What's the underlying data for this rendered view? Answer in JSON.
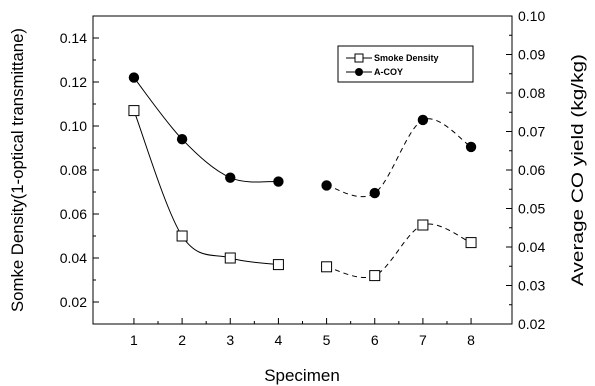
{
  "chart_data": {
    "type": "scatter",
    "title": "",
    "xlabel": "Specimen",
    "ylabel_left": "Somke Density(1-optical transmittane)",
    "ylabel_right": "Average CO yield (kg/kg)",
    "x": [
      1,
      2,
      3,
      4,
      5,
      6,
      7,
      8
    ],
    "xlim": [
      0.15,
      8.85
    ],
    "ylim_left": [
      0.01,
      0.15
    ],
    "ylim_right": [
      0.02,
      0.1
    ],
    "x_ticks": [
      "1",
      "2",
      "3",
      "4",
      "5",
      "6",
      "7",
      "8"
    ],
    "y_ticks_left": [
      "0.02",
      "0.04",
      "0.06",
      "0.08",
      "0.10",
      "0.12",
      "0.14"
    ],
    "y_ticks_right": [
      "0.02",
      "0.03",
      "0.04",
      "0.05",
      "0.06",
      "0.07",
      "0.08",
      "0.09",
      "0.10"
    ],
    "grid": false,
    "legend_position": "top-right",
    "series": [
      {
        "name": "Smoke Density",
        "axis": "left",
        "marker": "open-square",
        "values": [
          0.107,
          0.05,
          0.04,
          0.037,
          0.036,
          0.032,
          0.055,
          0.047
        ]
      },
      {
        "name": "A-COY",
        "axis": "right",
        "marker": "filled-circle",
        "values": [
          0.084,
          0.068,
          0.058,
          0.057,
          0.056,
          0.054,
          0.073,
          0.066
        ]
      }
    ],
    "trend_segments": [
      {
        "range": [
          1,
          4
        ],
        "style": "solid"
      },
      {
        "range": [
          5,
          8
        ],
        "style": "dashed"
      }
    ]
  }
}
